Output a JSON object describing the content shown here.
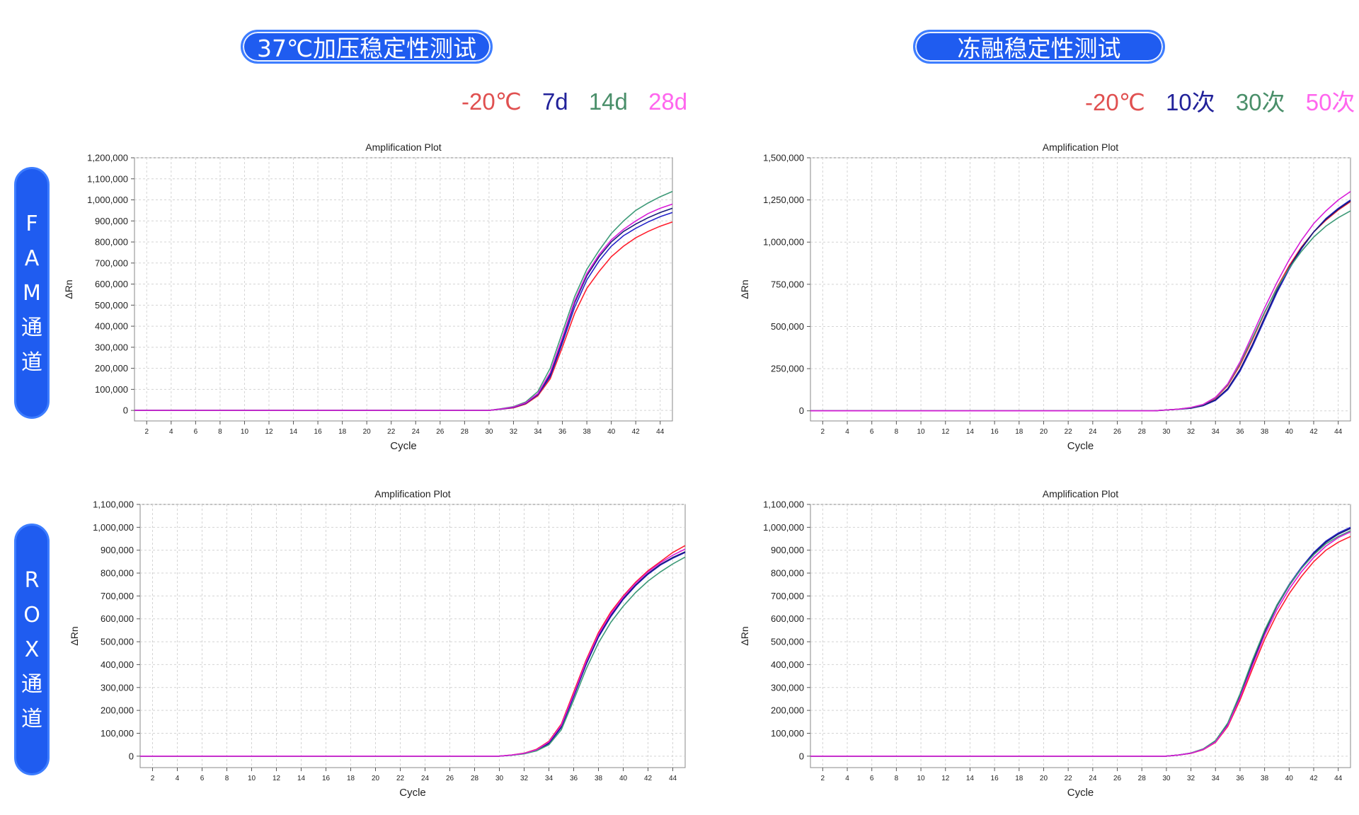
{
  "headers": {
    "left_title": "37℃加压稳定性测试",
    "right_title": "冻融稳定性测试"
  },
  "channels": {
    "fam": [
      "F",
      "A",
      "M",
      "通",
      "道"
    ],
    "rox": [
      "R",
      "O",
      "X",
      "通",
      "道"
    ]
  },
  "legends": {
    "left": [
      {
        "label": "-20℃",
        "color": "#e05050"
      },
      {
        "label": "7d",
        "color": "#22229a"
      },
      {
        "label": "14d",
        "color": "#4a8f6a"
      },
      {
        "label": "28d",
        "color": "#ff66ee"
      }
    ],
    "right": [
      {
        "label": "-20℃",
        "color": "#e05050"
      },
      {
        "label": "10次",
        "color": "#22229a"
      },
      {
        "label": "30次",
        "color": "#4a8f6a"
      },
      {
        "label": "50次",
        "color": "#ff66ee"
      }
    ]
  },
  "series_colors": {
    "red": "#ff1e2d",
    "blue": "#2323c8",
    "navy": "#1a1a7a",
    "green": "#3e9a78",
    "magenta": "#d81cd8"
  },
  "chart_data": [
    {
      "id": "fam-37c",
      "type": "line",
      "title": "Amplification Plot",
      "xlabel": "Cycle",
      "ylabel": "ΔRn",
      "xlim": [
        1,
        45
      ],
      "ylim": [
        -50000,
        1200000
      ],
      "yticks": [
        0,
        100000,
        200000,
        300000,
        400000,
        500000,
        600000,
        700000,
        800000,
        900000,
        1000000,
        1100000,
        1200000
      ],
      "ytick_labels": [
        "0",
        "100,000",
        "200,000",
        "300,000",
        "400,000",
        "500,000",
        "600,000",
        "700,000",
        "800,000",
        "900,000",
        "1,000,000",
        "1,100,000",
        "1,200,000"
      ],
      "xticks": [
        2,
        4,
        6,
        8,
        10,
        12,
        14,
        16,
        18,
        20,
        22,
        24,
        26,
        28,
        30,
        32,
        34,
        36,
        38,
        40,
        42,
        44
      ],
      "grid": true,
      "cycles": [
        30,
        31,
        32,
        33,
        34,
        35,
        36,
        37,
        38,
        39,
        40,
        41,
        42,
        43,
        44,
        45
      ],
      "series": [
        {
          "color": "#ff1e2d",
          "values": [
            0,
            6000,
            12000,
            30000,
            70000,
            150000,
            300000,
            460000,
            580000,
            660000,
            730000,
            780000,
            820000,
            850000,
            875000,
            895000
          ]
        },
        {
          "color": "#2323c8",
          "values": [
            0,
            6000,
            14000,
            33000,
            75000,
            160000,
            320000,
            490000,
            620000,
            710000,
            780000,
            830000,
            865000,
            895000,
            920000,
            940000
          ]
        },
        {
          "color": "#1a1a7a",
          "values": [
            0,
            7000,
            15000,
            35000,
            78000,
            170000,
            335000,
            510000,
            640000,
            730000,
            800000,
            850000,
            885000,
            915000,
            940000,
            960000
          ]
        },
        {
          "color": "#3e9a78",
          "values": [
            0,
            8000,
            18000,
            40000,
            90000,
            200000,
            370000,
            540000,
            670000,
            760000,
            840000,
            900000,
            950000,
            985000,
            1015000,
            1040000
          ]
        },
        {
          "color": "#d81cd8",
          "values": [
            0,
            7000,
            16000,
            36000,
            80000,
            180000,
            345000,
            520000,
            650000,
            740000,
            810000,
            860000,
            900000,
            935000,
            960000,
            980000
          ]
        }
      ]
    },
    {
      "id": "fam-freeze",
      "type": "line",
      "title": "Amplification Plot",
      "xlabel": "Cycle",
      "ylabel": "ΔRn",
      "xlim": [
        1,
        45
      ],
      "ylim": [
        -60000,
        1500000
      ],
      "yticks": [
        0,
        250000,
        500000,
        750000,
        1000000,
        1250000,
        1500000
      ],
      "ytick_labels": [
        "0",
        "250,000",
        "500,000",
        "750,000",
        "1,000,000",
        "1,250,000",
        "1,500,000"
      ],
      "xticks": [
        2,
        4,
        6,
        8,
        10,
        12,
        14,
        16,
        18,
        20,
        22,
        24,
        26,
        28,
        30,
        32,
        34,
        36,
        38,
        40,
        42,
        44
      ],
      "grid": true,
      "cycles": [
        30,
        31,
        32,
        33,
        34,
        35,
        36,
        37,
        38,
        39,
        40,
        41,
        42,
        43,
        44,
        45
      ],
      "series": [
        {
          "color": "#ff1e2d",
          "values": [
            5000,
            10000,
            18000,
            35000,
            75000,
            150000,
            270000,
            420000,
            580000,
            730000,
            860000,
            970000,
            1060000,
            1130000,
            1190000,
            1240000
          ]
        },
        {
          "color": "#2323c8",
          "values": [
            5000,
            9000,
            15000,
            30000,
            62000,
            125000,
            235000,
            380000,
            540000,
            700000,
            840000,
            960000,
            1060000,
            1140000,
            1200000,
            1250000
          ]
        },
        {
          "color": "#1a1a7a",
          "values": [
            5000,
            9000,
            16000,
            32000,
            66000,
            132000,
            245000,
            392000,
            553000,
            712000,
            850000,
            965000,
            1060000,
            1135000,
            1195000,
            1245000
          ]
        },
        {
          "color": "#3e9a78",
          "values": [
            5000,
            10000,
            19000,
            37000,
            78000,
            155000,
            280000,
            430000,
            585000,
            725000,
            845000,
            945000,
            1030000,
            1095000,
            1145000,
            1185000
          ]
        },
        {
          "color": "#d81cd8",
          "values": [
            5000,
            10000,
            20000,
            38000,
            80000,
            160000,
            290000,
            450000,
            610000,
            760000,
            895000,
            1010000,
            1110000,
            1185000,
            1250000,
            1300000
          ]
        }
      ]
    },
    {
      "id": "rox-37c",
      "type": "line",
      "title": "Amplification Plot",
      "xlabel": "Cycle",
      "ylabel": "ΔRn",
      "xlim": [
        1,
        45
      ],
      "ylim": [
        -50000,
        1100000
      ],
      "yticks": [
        0,
        100000,
        200000,
        300000,
        400000,
        500000,
        600000,
        700000,
        800000,
        900000,
        1000000,
        1100000
      ],
      "ytick_labels": [
        "0",
        "100,000",
        "200,000",
        "300,000",
        "400,000",
        "500,000",
        "600,000",
        "700,000",
        "800,000",
        "900,000",
        "1,000,000",
        "1,100,000"
      ],
      "xticks": [
        2,
        4,
        6,
        8,
        10,
        12,
        14,
        16,
        18,
        20,
        22,
        24,
        26,
        28,
        30,
        32,
        34,
        36,
        38,
        40,
        42,
        44
      ],
      "grid": true,
      "cycles": [
        30,
        31,
        32,
        33,
        34,
        35,
        36,
        37,
        38,
        39,
        40,
        41,
        42,
        43,
        44,
        45
      ],
      "series": [
        {
          "color": "#ff1e2d",
          "values": [
            0,
            5000,
            13000,
            30000,
            65000,
            140000,
            280000,
            420000,
            540000,
            630000,
            700000,
            760000,
            810000,
            850000,
            890000,
            920000
          ]
        },
        {
          "color": "#2323c8",
          "values": [
            0,
            4000,
            11000,
            25000,
            55000,
            125000,
            260000,
            400000,
            520000,
            610000,
            685000,
            745000,
            795000,
            835000,
            865000,
            890000
          ]
        },
        {
          "color": "#1a1a7a",
          "values": [
            0,
            4000,
            12000,
            27000,
            58000,
            130000,
            265000,
            405000,
            525000,
            615000,
            688000,
            748000,
            798000,
            838000,
            868000,
            893000
          ]
        },
        {
          "color": "#3e9a78",
          "values": [
            0,
            4000,
            10000,
            23000,
            50000,
            115000,
            245000,
            380000,
            495000,
            585000,
            655000,
            715000,
            765000,
            805000,
            840000,
            870000
          ]
        },
        {
          "color": "#d81cd8",
          "values": [
            0,
            5000,
            12000,
            28000,
            62000,
            135000,
            270000,
            412000,
            532000,
            622000,
            695000,
            755000,
            805000,
            845000,
            878000,
            905000
          ]
        }
      ]
    },
    {
      "id": "rox-freeze",
      "type": "line",
      "title": "Amplification Plot",
      "xlabel": "Cycle",
      "ylabel": "ΔRn",
      "xlim": [
        1,
        45
      ],
      "ylim": [
        -50000,
        1100000
      ],
      "yticks": [
        0,
        100000,
        200000,
        300000,
        400000,
        500000,
        600000,
        700000,
        800000,
        900000,
        1000000,
        1100000
      ],
      "ytick_labels": [
        "0",
        "100,000",
        "200,000",
        "300,000",
        "400,000",
        "500,000",
        "600,000",
        "700,000",
        "800,000",
        "900,000",
        "1,000,000",
        "1,100,000"
      ],
      "xticks": [
        2,
        4,
        6,
        8,
        10,
        12,
        14,
        16,
        18,
        20,
        22,
        24,
        26,
        28,
        30,
        32,
        34,
        36,
        38,
        40,
        42,
        44
      ],
      "grid": true,
      "cycles": [
        30,
        31,
        32,
        33,
        34,
        35,
        36,
        37,
        38,
        39,
        40,
        41,
        42,
        43,
        44,
        45
      ],
      "series": [
        {
          "color": "#ff1e2d",
          "values": [
            0,
            5000,
            12000,
            28000,
            60000,
            130000,
            245000,
            380000,
            510000,
            620000,
            710000,
            785000,
            850000,
            900000,
            935000,
            960000
          ]
        },
        {
          "color": "#2323c8",
          "values": [
            0,
            5000,
            13000,
            30000,
            65000,
            140000,
            265000,
            410000,
            545000,
            660000,
            750000,
            825000,
            890000,
            940000,
            975000,
            1000000
          ]
        },
        {
          "color": "#1a1a7a",
          "values": [
            0,
            5000,
            13000,
            30000,
            64000,
            138000,
            262000,
            405000,
            540000,
            655000,
            745000,
            820000,
            885000,
            935000,
            970000,
            995000
          ]
        },
        {
          "color": "#3e9a78",
          "values": [
            0,
            5000,
            14000,
            32000,
            68000,
            145000,
            272000,
            418000,
            550000,
            660000,
            748000,
            820000,
            880000,
            928000,
            960000,
            985000
          ]
        },
        {
          "color": "#d81cd8",
          "values": [
            0,
            5000,
            13000,
            29000,
            62000,
            134000,
            255000,
            395000,
            528000,
            640000,
            730000,
            805000,
            868000,
            918000,
            955000,
            980000
          ]
        }
      ]
    }
  ]
}
